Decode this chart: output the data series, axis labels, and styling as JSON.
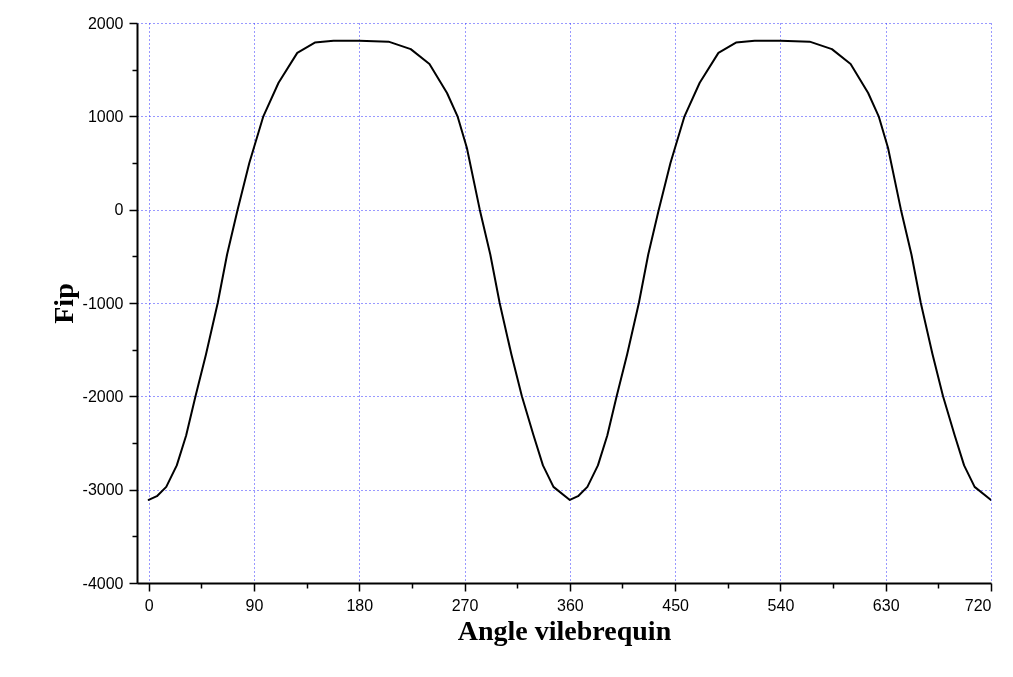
{
  "chart_data": {
    "type": "line",
    "xlabel": "Angle vilebrequin",
    "ylabel": "Fip",
    "x": [
      0,
      7,
      15,
      24,
      32,
      40,
      49,
      59,
      67,
      76,
      86,
      98,
      111,
      127,
      142,
      158,
      180,
      205,
      224,
      240,
      255,
      264,
      272,
      283,
      292,
      300,
      310,
      319,
      329,
      337,
      346,
      360,
      367,
      375,
      384,
      392,
      400,
      409,
      419,
      427,
      436,
      446,
      458,
      471,
      487,
      502,
      518,
      540,
      565,
      584,
      600,
      615,
      624,
      632,
      643,
      652,
      660,
      670,
      679,
      689,
      697,
      706,
      720
    ],
    "series": [
      {
        "color": "#000000",
        "values": [
          -3110,
          -3070,
          -2970,
          -2740,
          -2420,
          -2000,
          -1550,
          -1000,
          -480,
          0,
          500,
          1000,
          1360,
          1680,
          1790,
          1810,
          1810,
          1800,
          1720,
          1560,
          1250,
          1000,
          660,
          0,
          -480,
          -1000,
          -1550,
          -2000,
          -2420,
          -2740,
          -2970,
          -3110,
          -3070,
          -2970,
          -2740,
          -2420,
          -2000,
          -1550,
          -1000,
          -480,
          0,
          500,
          1000,
          1360,
          1680,
          1790,
          1810,
          1810,
          1800,
          1720,
          1560,
          1250,
          1000,
          660,
          0,
          -480,
          -1000,
          -1550,
          -2000,
          -2420,
          -2740,
          -2970,
          -3110
        ]
      }
    ],
    "xlim": [
      -10,
      720
    ],
    "xticks": [
      0,
      {
        "value": 45,
        "label": null
      },
      90,
      {
        "value": 135,
        "label": null
      },
      180,
      {
        "value": 225,
        "label": null
      },
      270,
      {
        "value": 315,
        "label": null
      },
      360,
      {
        "value": 405,
        "label": null
      },
      450,
      {
        "value": 495,
        "label": null
      },
      540,
      {
        "value": 585,
        "label": null
      },
      630,
      {
        "value": 675,
        "label": null
      },
      720
    ],
    "ylim": [
      -4000,
      2000
    ],
    "yticks": [
      -4000,
      {
        "value": -3500,
        "label": null
      },
      -3000,
      {
        "value": -2500,
        "label": null
      },
      -2000,
      {
        "value": -1500,
        "label": null
      },
      -1000,
      {
        "value": -500,
        "label": null
      },
      0,
      {
        "value": 500,
        "label": null
      },
      1000,
      {
        "value": 1500,
        "label": null
      },
      2000
    ],
    "grid": true,
    "line_style": "solid"
  }
}
